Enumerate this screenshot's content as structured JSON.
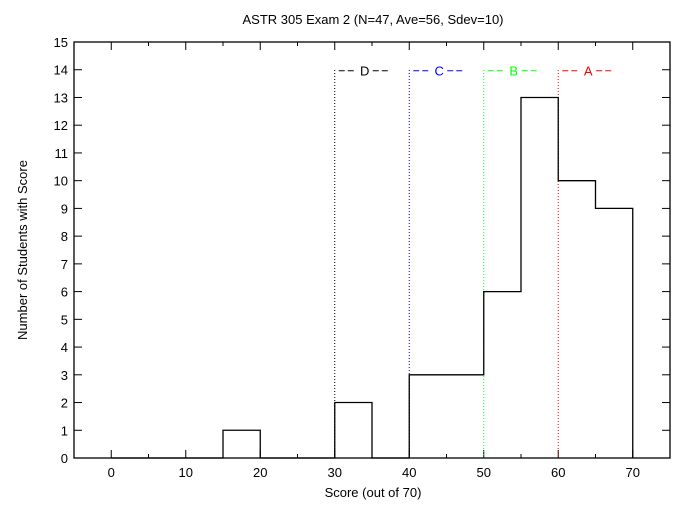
{
  "chart_data": {
    "type": "bar",
    "title": "ASTR 305 Exam 2 (N=47, Ave=56, Sdev=10)",
    "xlabel": "Score (out of 70)",
    "ylabel": "Number of Students with Score",
    "xlim": [
      -5,
      75
    ],
    "ylim": [
      0,
      15
    ],
    "x_ticks": [
      0,
      10,
      20,
      30,
      40,
      50,
      60,
      70
    ],
    "y_ticks": [
      0,
      1,
      2,
      3,
      4,
      5,
      6,
      7,
      8,
      9,
      10,
      11,
      12,
      13,
      14,
      15
    ],
    "bins": [
      {
        "x0": 0,
        "x1": 5,
        "count": 0
      },
      {
        "x0": 5,
        "x1": 10,
        "count": 0
      },
      {
        "x0": 10,
        "x1": 15,
        "count": 0
      },
      {
        "x0": 15,
        "x1": 20,
        "count": 1
      },
      {
        "x0": 20,
        "x1": 25,
        "count": 0
      },
      {
        "x0": 25,
        "x1": 30,
        "count": 0
      },
      {
        "x0": 30,
        "x1": 35,
        "count": 2
      },
      {
        "x0": 35,
        "x1": 40,
        "count": 0
      },
      {
        "x0": 40,
        "x1": 45,
        "count": 3
      },
      {
        "x0": 45,
        "x1": 50,
        "count": 3
      },
      {
        "x0": 50,
        "x1": 55,
        "count": 6
      },
      {
        "x0": 55,
        "x1": 60,
        "count": 13
      },
      {
        "x0": 60,
        "x1": 65,
        "count": 10
      },
      {
        "x0": 65,
        "x1": 70,
        "count": 9
      }
    ],
    "grade_cutoffs": [
      {
        "grade": "D",
        "x": 30,
        "label": "D",
        "color": "#000000",
        "dash": "1,2"
      },
      {
        "grade": "C",
        "x": 40,
        "label": "C",
        "color": "#0000ff",
        "dash": "1,2"
      },
      {
        "grade": "B",
        "x": 50,
        "label": "B",
        "color": "#00ff00",
        "dash": "1,2"
      },
      {
        "grade": "A",
        "x": 60,
        "label": "A",
        "color": "#ff0000",
        "dash": "1,2"
      }
    ],
    "grade_label_y": 14,
    "grid": false,
    "ticks_on_all_sides": true
  }
}
